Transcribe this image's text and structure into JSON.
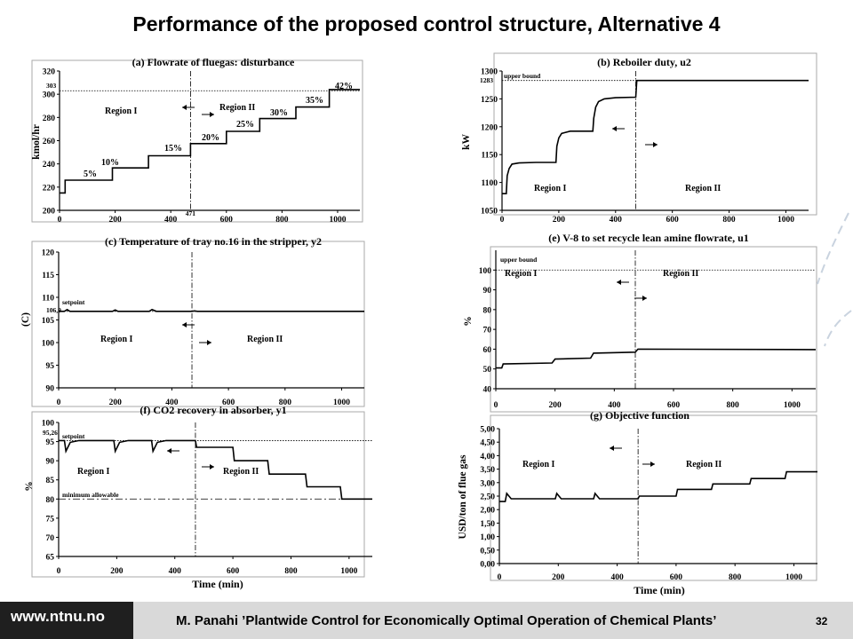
{
  "slide": {
    "title": "Performance of the proposed control structure, Alternative 4",
    "footer": {
      "url": "www.ntnu.no",
      "caption": "M. Panahi ’Plantwide Control for Economically Optimal Operation of Chemical Plants’",
      "page_number": "32"
    }
  },
  "chart_data": [
    {
      "id": "a",
      "type": "line",
      "title": "(a) Flowrate of fluegas: disturbance",
      "ylabel": "kmol/hr",
      "xlim": [
        0,
        1080
      ],
      "ylim": [
        200,
        320
      ],
      "xticks": [
        0,
        200,
        400,
        600,
        800,
        1000
      ],
      "xtick_labels": [
        "0",
        "200",
        "400",
        "600",
        "800",
        "1000"
      ],
      "yticks": [
        200,
        220,
        240,
        260,
        280,
        300,
        320
      ],
      "ytick_labels": [
        "200",
        "220",
        "240",
        "260",
        "280",
        "300",
        "320"
      ],
      "hlines": [
        {
          "y": 303,
          "label": "303",
          "style": "dotted"
        }
      ],
      "vline": {
        "x": 471,
        "label": "471"
      },
      "region_labels": [
        "Region I",
        "Region II"
      ],
      "annotations": [
        "5%",
        "10%",
        "15%",
        "20%",
        "25%",
        "30%",
        "35%",
        "42%"
      ],
      "series": [
        {
          "x": [
            0,
            20,
            20,
            190,
            190,
            320,
            320,
            471,
            471,
            600,
            600,
            720,
            720,
            850,
            850,
            970,
            970,
            1080
          ],
          "y": [
            215,
            215,
            226,
            226,
            236.5,
            236.5,
            247,
            247,
            257.5,
            257.5,
            268,
            268,
            279,
            279,
            289,
            289,
            304,
            304
          ]
        }
      ]
    },
    {
      "id": "b",
      "type": "line",
      "title": "(b) Reboiler duty, u2",
      "ylabel": "kW",
      "xlim": [
        0,
        1080
      ],
      "ylim": [
        1050,
        1300
      ],
      "xticks": [
        0,
        200,
        400,
        600,
        800,
        1000
      ],
      "xtick_labels": [
        "0",
        "200",
        "400",
        "600",
        "800",
        "1000"
      ],
      "yticks": [
        1050,
        1100,
        1150,
        1200,
        1250,
        1300
      ],
      "ytick_labels": [
        "1050",
        "1100",
        "1150",
        "1200",
        "1250",
        "1300"
      ],
      "hlines": [
        {
          "y": 1283,
          "label": "1283",
          "text": "upper bound",
          "style": "dotted"
        }
      ],
      "vline": {
        "x": 471
      },
      "region_labels": [
        "Region I",
        "Region II"
      ],
      "series": [
        {
          "x": [
            0,
            15,
            18,
            25,
            35,
            60,
            120,
            190,
            193,
            200,
            210,
            240,
            320,
            323,
            330,
            340,
            360,
            400,
            471,
            475,
            1080
          ],
          "y": [
            1080,
            1080,
            1112,
            1125,
            1133,
            1135,
            1136,
            1136,
            1165,
            1180,
            1188,
            1192,
            1192,
            1215,
            1235,
            1245,
            1250,
            1252,
            1253,
            1283,
            1283
          ]
        }
      ]
    },
    {
      "id": "c",
      "type": "line",
      "title": "(c) Temperature of tray no.16 in the stripper, y2",
      "ylabel": "(C)",
      "xlim": [
        0,
        1080
      ],
      "ylim": [
        90,
        120
      ],
      "xticks": [
        0,
        200,
        400,
        600,
        800,
        1000
      ],
      "xtick_labels": [
        "0",
        "200",
        "400",
        "600",
        "800",
        "1000"
      ],
      "yticks": [
        90,
        95,
        100,
        105,
        110,
        115,
        120
      ],
      "ytick_labels": [
        "90",
        "95",
        "100",
        "105",
        "110",
        "115",
        "120"
      ],
      "hlines": [
        {
          "y": 106.9,
          "label": "106,9",
          "text": "setpoint",
          "style": "dotted"
        }
      ],
      "vline": {
        "x": 471
      },
      "region_labels": [
        "Region I",
        "Region II"
      ],
      "series": [
        {
          "x": [
            0,
            20,
            30,
            40,
            190,
            200,
            210,
            320,
            330,
            345,
            471,
            480,
            490,
            1080
          ],
          "y": [
            106.9,
            106.9,
            107.3,
            106.9,
            106.9,
            107.2,
            106.9,
            106.9,
            107.3,
            106.9,
            106.9,
            107.0,
            106.9,
            106.9
          ]
        }
      ]
    },
    {
      "id": "e",
      "type": "line",
      "title": "(e) V-8 to set recycle lean amine flowrate, u1",
      "ylabel": "%",
      "xlim": [
        0,
        1080
      ],
      "ylim": [
        40,
        110
      ],
      "xticks": [
        0,
        200,
        400,
        600,
        800,
        1000
      ],
      "xtick_labels": [
        "0",
        "200",
        "400",
        "600",
        "800",
        "1000"
      ],
      "yticks": [
        40,
        50,
        60,
        70,
        80,
        90,
        100
      ],
      "ytick_labels": [
        "40",
        "50",
        "60",
        "70",
        "80",
        "90",
        "100"
      ],
      "hlines": [
        {
          "y": 100,
          "text": "upper bound",
          "style": "dotted"
        }
      ],
      "vline": {
        "x": 471
      },
      "region_labels": [
        "Region I",
        "Region II"
      ],
      "series": [
        {
          "x": [
            0,
            20,
            25,
            190,
            200,
            320,
            330,
            471,
            480,
            1080
          ],
          "y": [
            50.5,
            50.5,
            52.5,
            53,
            55,
            55.5,
            58,
            58.5,
            60,
            59.8
          ]
        }
      ]
    },
    {
      "id": "f",
      "type": "line",
      "title": "(f) CO2 recovery in absorber, y1",
      "ylabel": "%",
      "xlabel": "Time (min)",
      "xlim": [
        0,
        1080
      ],
      "ylim": [
        65,
        100
      ],
      "xticks": [
        0,
        200,
        400,
        600,
        800,
        1000
      ],
      "xtick_labels": [
        "0",
        "200",
        "400",
        "600",
        "800",
        "1000"
      ],
      "yticks": [
        65,
        70,
        75,
        80,
        85,
        90,
        95,
        100
      ],
      "ytick_labels": [
        "65",
        "70",
        "75",
        "80",
        "85",
        "90",
        "95",
        "100"
      ],
      "hlines": [
        {
          "y": 95.26,
          "label": "95,26",
          "text": "setpoint",
          "style": "dotted"
        },
        {
          "y": 80,
          "text": "minimum allowable",
          "style": "dashdot"
        }
      ],
      "vline": {
        "x": 471
      },
      "region_labels": [
        "Region I",
        "Region II"
      ],
      "series": [
        {
          "x": [
            0,
            20,
            25,
            40,
            70,
            190,
            195,
            210,
            240,
            320,
            325,
            340,
            370,
            471,
            475,
            490,
            600,
            605,
            720,
            725,
            850,
            855,
            970,
            975,
            1080
          ],
          "y": [
            95.26,
            95.26,
            92.5,
            94.8,
            95.26,
            95.26,
            92.5,
            94.8,
            95.26,
            95.26,
            92.5,
            94.8,
            95.26,
            95.26,
            93.5,
            93.5,
            93.5,
            90,
            90,
            86.5,
            86.5,
            83.2,
            83.2,
            80,
            80
          ]
        }
      ]
    },
    {
      "id": "g",
      "type": "line",
      "title": "(g) Objective function",
      "ylabel": "USD/ton of flue gas",
      "xlabel": "Time (min)",
      "xlim": [
        0,
        1080
      ],
      "ylim": [
        0,
        5
      ],
      "xticks": [
        0,
        200,
        400,
        600,
        800,
        1000
      ],
      "xtick_labels": [
        "0",
        "200",
        "400",
        "600",
        "800",
        "1000"
      ],
      "yticks": [
        0,
        0.5,
        1,
        1.5,
        2,
        2.5,
        3,
        3.5,
        4,
        4.5,
        5
      ],
      "ytick_labels": [
        "0,00",
        "0,50",
        "1,00",
        "1,50",
        "2,00",
        "2,50",
        "3,00",
        "3,50",
        "4,00",
        "4,50",
        "5,00"
      ],
      "vline": {
        "x": 471
      },
      "region_labels": [
        "Region I",
        "Region II"
      ],
      "series": [
        {
          "x": [
            0,
            20,
            25,
            40,
            190,
            195,
            210,
            320,
            325,
            340,
            471,
            475,
            600,
            605,
            720,
            725,
            850,
            855,
            970,
            975,
            1080
          ],
          "y": [
            2.3,
            2.3,
            2.6,
            2.4,
            2.4,
            2.6,
            2.4,
            2.4,
            2.6,
            2.4,
            2.4,
            2.5,
            2.5,
            2.75,
            2.75,
            2.95,
            2.95,
            3.15,
            3.15,
            3.4,
            3.4
          ]
        }
      ]
    }
  ]
}
